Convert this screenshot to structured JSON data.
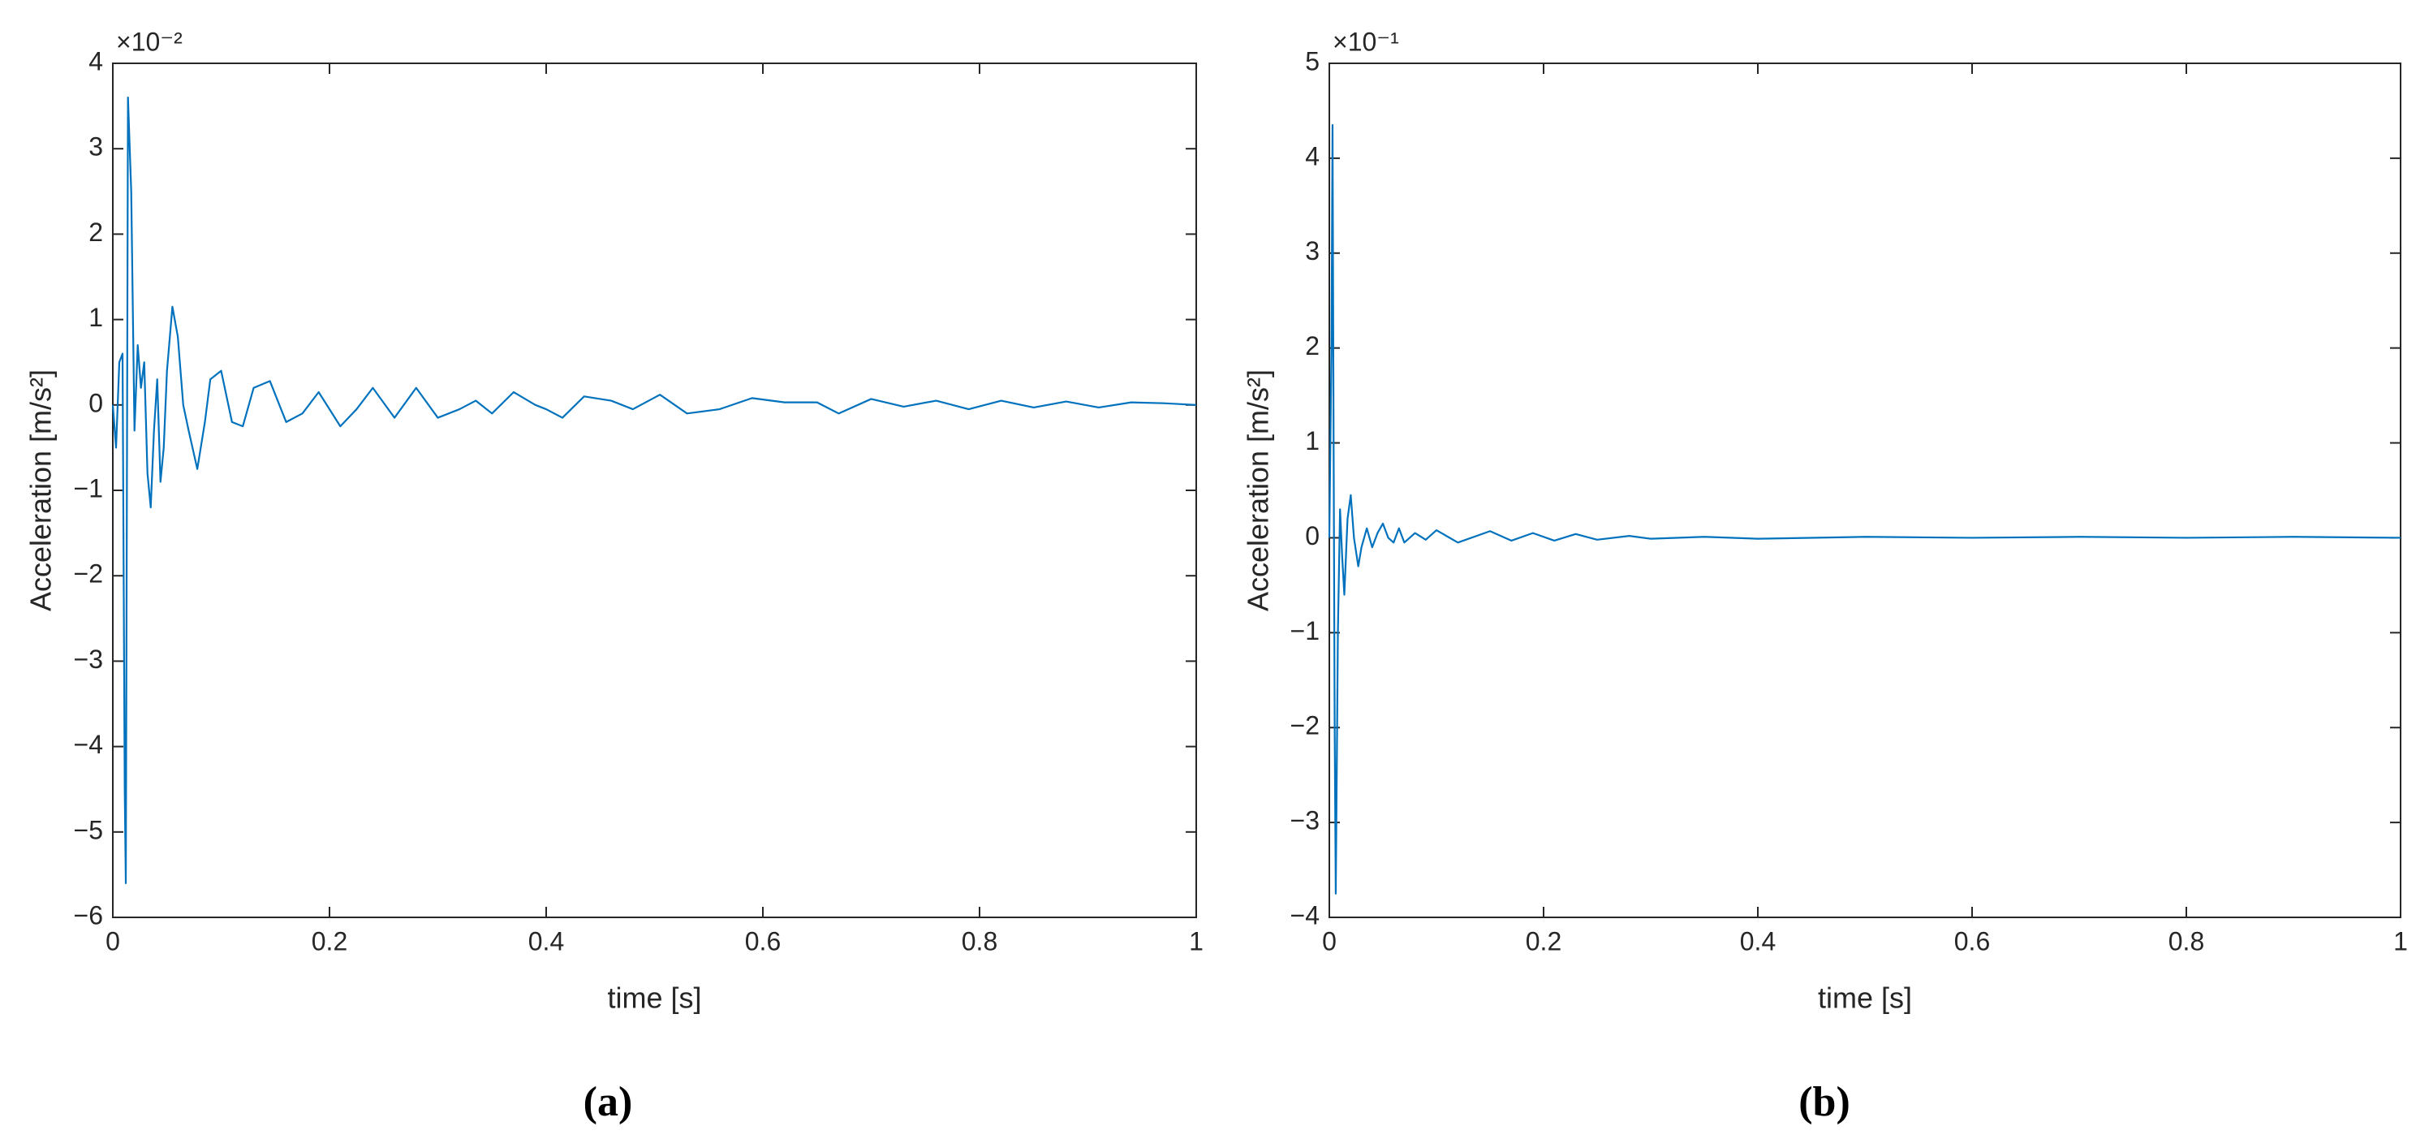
{
  "chart_data": [
    {
      "type": "line",
      "caption": "(a)",
      "xlabel": "time [s]",
      "ylabel": "Acceleration [m/s²]",
      "y_multiplier": "×10⁻²",
      "color": "#0072bd",
      "xlim": [
        0,
        1
      ],
      "ylim": [
        -6,
        4
      ],
      "xticks": [
        0,
        0.2,
        0.4,
        0.6,
        0.8,
        1
      ],
      "yticks": [
        {
          "value": -6,
          "label": "−6"
        },
        {
          "value": -5,
          "label": "−5"
        },
        {
          "value": -4,
          "label": "−4"
        },
        {
          "value": -3,
          "label": "−3"
        },
        {
          "value": -2,
          "label": "−2"
        },
        {
          "value": -1,
          "label": "−1"
        },
        0,
        1,
        2,
        3,
        4
      ],
      "x": [
        0,
        0.003,
        0.006,
        0.009,
        0.011,
        0.012,
        0.014,
        0.017,
        0.02,
        0.023,
        0.026,
        0.029,
        0.032,
        0.035,
        0.038,
        0.041,
        0.044,
        0.047,
        0.05,
        0.055,
        0.06,
        0.065,
        0.07,
        0.078,
        0.085,
        0.09,
        0.1,
        0.11,
        0.12,
        0.13,
        0.145,
        0.16,
        0.175,
        0.19,
        0.21,
        0.225,
        0.24,
        0.26,
        0.28,
        0.3,
        0.32,
        0.335,
        0.35,
        0.37,
        0.39,
        0.4,
        0.415,
        0.435,
        0.46,
        0.48,
        0.505,
        0.53,
        0.56,
        0.59,
        0.62,
        0.65,
        0.67,
        0.7,
        0.73,
        0.76,
        0.79,
        0.82,
        0.85,
        0.88,
        0.91,
        0.94,
        0.97,
        1
      ],
      "values": [
        0,
        -0.5,
        0.5,
        0.6,
        -4.5,
        -5.6,
        3.6,
        2.5,
        -0.3,
        0.7,
        0.2,
        0.5,
        -0.8,
        -1.2,
        -0.3,
        0.3,
        -0.9,
        -0.5,
        0.4,
        1.15,
        0.8,
        0,
        -0.3,
        -0.75,
        -0.2,
        0.3,
        0.4,
        -0.2,
        -0.25,
        0.2,
        0.28,
        -0.2,
        -0.1,
        0.15,
        -0.25,
        -0.05,
        0.2,
        -0.15,
        0.2,
        -0.15,
        -0.05,
        0.05,
        -0.1,
        0.15,
        0,
        -0.05,
        -0.15,
        0.1,
        0.05,
        -0.05,
        0.12,
        -0.1,
        -0.05,
        0.08,
        0.03,
        0.03,
        -0.1,
        0.07,
        -0.02,
        0.05,
        -0.05,
        0.05,
        -0.03,
        0.04,
        -0.03,
        0.03,
        0.02,
        0
      ]
    },
    {
      "type": "line",
      "caption": "(b)",
      "xlabel": "time [s]",
      "ylabel": "Acceleration [m/s²]",
      "y_multiplier": "×10⁻¹",
      "color": "#0072bd",
      "xlim": [
        0,
        1
      ],
      "ylim": [
        -4,
        5
      ],
      "xticks": [
        0,
        0.2,
        0.4,
        0.6,
        0.8,
        1
      ],
      "yticks": [
        {
          "value": -4,
          "label": "−4"
        },
        {
          "value": -3,
          "label": "−3"
        },
        {
          "value": -2,
          "label": "−2"
        },
        {
          "value": -1,
          "label": "−1"
        },
        0,
        1,
        2,
        3,
        4,
        5
      ],
      "x": [
        0,
        0.002,
        0.003,
        0.004,
        0.005,
        0.006,
        0.008,
        0.01,
        0.012,
        0.014,
        0.017,
        0.02,
        0.023,
        0.027,
        0.03,
        0.035,
        0.04,
        0.045,
        0.05,
        0.055,
        0.06,
        0.065,
        0.07,
        0.08,
        0.09,
        0.1,
        0.12,
        0.15,
        0.17,
        0.19,
        0.21,
        0.23,
        0.25,
        0.28,
        0.3,
        0.35,
        0.4,
        0.5,
        0.6,
        0.7,
        0.8,
        0.9,
        1
      ],
      "values": [
        0,
        2,
        4.35,
        1,
        -2,
        -3.75,
        -1,
        0.3,
        -0.2,
        -0.6,
        0.2,
        0.45,
        0,
        -0.3,
        -0.1,
        0.1,
        -0.1,
        0.05,
        0.15,
        0,
        -0.05,
        0.1,
        -0.05,
        0.05,
        -0.02,
        0.08,
        -0.05,
        0.07,
        -0.03,
        0.05,
        -0.03,
        0.04,
        -0.02,
        0.02,
        -0.01,
        0.01,
        -0.01,
        0.01,
        0,
        0.01,
        0,
        0.01,
        0
      ]
    }
  ]
}
